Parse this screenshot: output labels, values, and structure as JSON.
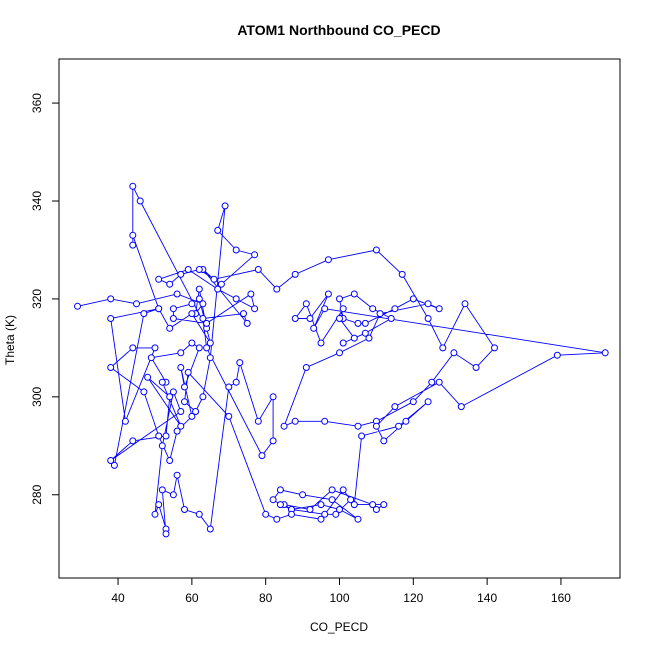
{
  "chart_data": {
    "type": "scatter",
    "title": "ATOM1 Northbound CO_PECD",
    "xlabel": "CO_PECD",
    "ylabel": "Theta (K)",
    "xlim": [
      24,
      176
    ],
    "ylim": [
      263,
      369
    ],
    "xticks": [
      40,
      60,
      80,
      100,
      120,
      140,
      160
    ],
    "yticks": [
      280,
      300,
      320,
      340,
      360
    ],
    "grid": false,
    "legend": "none",
    "series_color": "#0000ff",
    "mode": "lines+markers",
    "x": [
      29,
      38,
      45,
      56,
      63,
      61,
      62,
      64,
      46,
      44,
      44,
      44,
      51,
      38,
      42,
      50,
      44,
      38,
      47,
      51,
      54,
      56,
      60,
      57,
      58,
      62,
      60,
      57,
      49,
      53,
      52,
      57,
      48,
      54,
      53,
      44,
      38,
      57,
      55,
      52,
      50,
      51,
      53,
      53,
      52,
      55,
      56,
      58,
      62,
      65,
      70,
      72,
      73,
      78,
      82,
      82,
      79,
      64,
      63,
      74,
      75,
      63,
      66,
      78,
      83,
      88,
      97,
      110,
      117,
      124,
      128,
      134,
      142,
      137,
      131,
      125,
      120,
      110,
      105,
      96,
      88,
      85,
      91,
      100,
      108,
      111,
      124,
      127,
      120,
      115,
      107,
      105,
      101,
      100,
      104,
      109,
      114,
      107,
      101,
      104,
      100,
      101,
      95,
      91,
      88,
      92,
      97,
      93,
      96,
      172,
      159,
      133,
      127,
      115,
      110,
      112,
      118,
      124,
      116,
      106,
      104,
      112,
      110,
      109,
      98,
      92,
      85,
      87,
      95,
      100,
      105,
      98,
      90,
      84,
      82,
      84,
      87,
      96,
      99,
      103,
      101,
      95,
      87,
      83,
      80,
      70,
      59,
      58,
      61,
      63,
      65,
      69,
      67,
      72,
      77,
      68,
      62,
      57,
      54,
      51,
      59,
      67,
      72,
      77,
      76,
      64,
      55,
      55,
      60,
      62,
      65,
      60,
      54,
      51,
      47,
      39
    ],
    "y": [
      318.5,
      320,
      319,
      321,
      319,
      317,
      322,
      314,
      340,
      343,
      331,
      333,
      318,
      316,
      295,
      310,
      310,
      306,
      301,
      292,
      287,
      293,
      296,
      306,
      302,
      310,
      311,
      309,
      308,
      303,
      303,
      294,
      304,
      300,
      292,
      291,
      287,
      297,
      301,
      290,
      276,
      278,
      273,
      272,
      281,
      280,
      284,
      277,
      276,
      273,
      302,
      303,
      307,
      295,
      300,
      291,
      288,
      310,
      316,
      317,
      315,
      326,
      324,
      326,
      322,
      325,
      328,
      330,
      325,
      316,
      310,
      319,
      310,
      306,
      309,
      303,
      299,
      295,
      294,
      295,
      295,
      294,
      306,
      309,
      312,
      317,
      319,
      318,
      320,
      318,
      315,
      315,
      316,
      320,
      321,
      318,
      316,
      313,
      311,
      312,
      316,
      318,
      311,
      319,
      316,
      316,
      321,
      314,
      318,
      309,
      308.5,
      298,
      303,
      298,
      294,
      291,
      295,
      299,
      294,
      292,
      278,
      278,
      277,
      278,
      281,
      277,
      278,
      277,
      278,
      277,
      275,
      279,
      280,
      281,
      279,
      278,
      277,
      276,
      276,
      279,
      281,
      275,
      276,
      275,
      276,
      296,
      305,
      299,
      297,
      300,
      308,
      339,
      334,
      330,
      329,
      323,
      326,
      325,
      323,
      324,
      326,
      322,
      320,
      318,
      321,
      315,
      316,
      318,
      319,
      320,
      311,
      317,
      314,
      318,
      317,
      286
    ]
  }
}
